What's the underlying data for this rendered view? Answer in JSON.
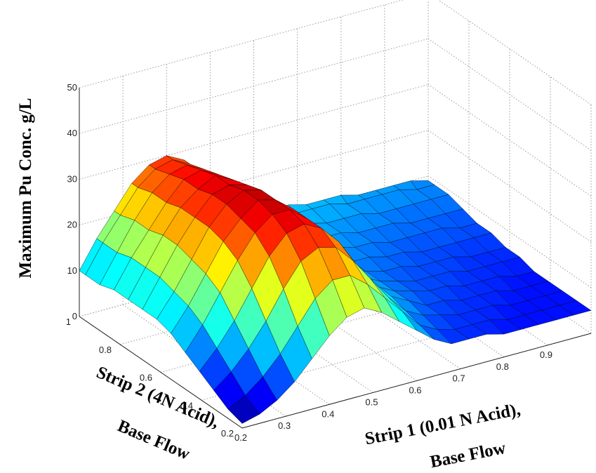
{
  "chart_data": {
    "type": "surface",
    "title": "",
    "xlabel_line1": "Strip 1 (0.01 N Acid),",
    "xlabel_line2": "Base Flow",
    "ylabel_line1": "Strip 2 (4N Acid),",
    "ylabel_line2": "Base  Flow",
    "zlabel": "Maximum Pu   Conc. g/L",
    "x_axis": {
      "range": [
        0.2,
        1.0
      ],
      "ticks": [
        0.2,
        0.3,
        0.4,
        0.5,
        0.6,
        0.7,
        0.8,
        0.9
      ],
      "tick_labels": [
        "0.2",
        "0.3",
        "0.4",
        "0.5",
        "0.6",
        "0.7",
        "0.8",
        "0.9"
      ]
    },
    "y_axis": {
      "range": [
        0.2,
        1.0
      ],
      "ticks": [
        0.2,
        0.4,
        0.6,
        0.8,
        1.0
      ],
      "tick_labels": [
        "0.2",
        "0.4",
        "0.6",
        "0.8",
        "1"
      ]
    },
    "z_axis": {
      "range": [
        0,
        50
      ],
      "ticks": [
        0,
        10,
        20,
        30,
        40,
        50
      ],
      "tick_labels": [
        "0",
        "10",
        "20",
        "30",
        "40",
        "50"
      ]
    },
    "grid": true,
    "colormap": "jet",
    "color_limits": [
      0,
      36
    ],
    "surface_x": [
      0.2,
      0.24,
      0.28,
      0.32,
      0.36,
      0.4,
      0.44,
      0.48,
      0.52,
      0.56,
      0.6,
      0.64,
      0.68,
      0.72,
      0.76,
      0.8,
      0.84,
      0.88,
      0.92,
      0.96,
      1.0
    ],
    "surface_y": [
      0.2,
      0.27,
      0.34,
      0.41,
      0.48,
      0.55,
      0.62,
      0.69,
      0.76,
      0.83,
      0.9,
      0.97,
      1.0
    ],
    "surface_z": [
      [
        1,
        2,
        4,
        7,
        11,
        15,
        18,
        19,
        17,
        14,
        11,
        8,
        6,
        6,
        6,
        5,
        5,
        5,
        5,
        5,
        5
      ],
      [
        2,
        4,
        7,
        11,
        16,
        21,
        24,
        24,
        21,
        17,
        13,
        9,
        7,
        6,
        6,
        6,
        5,
        5,
        5,
        5,
        5
      ],
      [
        4,
        7,
        11,
        16,
        22,
        27,
        29,
        28,
        24,
        19,
        14,
        10,
        8,
        7,
        6,
        6,
        6,
        5,
        5,
        5,
        5
      ],
      [
        6,
        10,
        15,
        21,
        27,
        31,
        32,
        30,
        26,
        20,
        15,
        11,
        9,
        7,
        7,
        6,
        6,
        6,
        5,
        5,
        5
      ],
      [
        8,
        13,
        19,
        25,
        30,
        33,
        33,
        30,
        26,
        20,
        15,
        11,
        9,
        8,
        7,
        7,
        6,
        6,
        6,
        5,
        5
      ],
      [
        10,
        15,
        21,
        27,
        31,
        34,
        33,
        30,
        25,
        19,
        14,
        11,
        9,
        8,
        7,
        7,
        7,
        6,
        6,
        6,
        6
      ],
      [
        11,
        16,
        22,
        28,
        32,
        34,
        33,
        29,
        24,
        18,
        14,
        11,
        9,
        8,
        8,
        7,
        7,
        7,
        6,
        6,
        6
      ],
      [
        11,
        17,
        23,
        28,
        32,
        33,
        32,
        28,
        23,
        17,
        13,
        11,
        9,
        9,
        8,
        8,
        7,
        7,
        7,
        7,
        7
      ],
      [
        11,
        17,
        23,
        28,
        31,
        33,
        31,
        27,
        22,
        17,
        13,
        11,
        10,
        9,
        9,
        8,
        8,
        8,
        8,
        7,
        7
      ],
      [
        11,
        17,
        22,
        27,
        31,
        32,
        30,
        26,
        21,
        16,
        13,
        11,
        10,
        10,
        9,
        9,
        9,
        8,
        8,
        8,
        8
      ],
      [
        10,
        16,
        22,
        27,
        30,
        31,
        29,
        25,
        20,
        16,
        13,
        11,
        11,
        10,
        10,
        10,
        9,
        9,
        9,
        9,
        9
      ],
      [
        10,
        16,
        21,
        26,
        29,
        30,
        28,
        24,
        20,
        16,
        13,
        12,
        11,
        11,
        11,
        10,
        10,
        10,
        10,
        9,
        9
      ],
      [
        10,
        16,
        21,
        26,
        29,
        30,
        28,
        24,
        19,
        15,
        13,
        12,
        12,
        11,
        11,
        11,
        10,
        10,
        10,
        10,
        9
      ]
    ]
  }
}
